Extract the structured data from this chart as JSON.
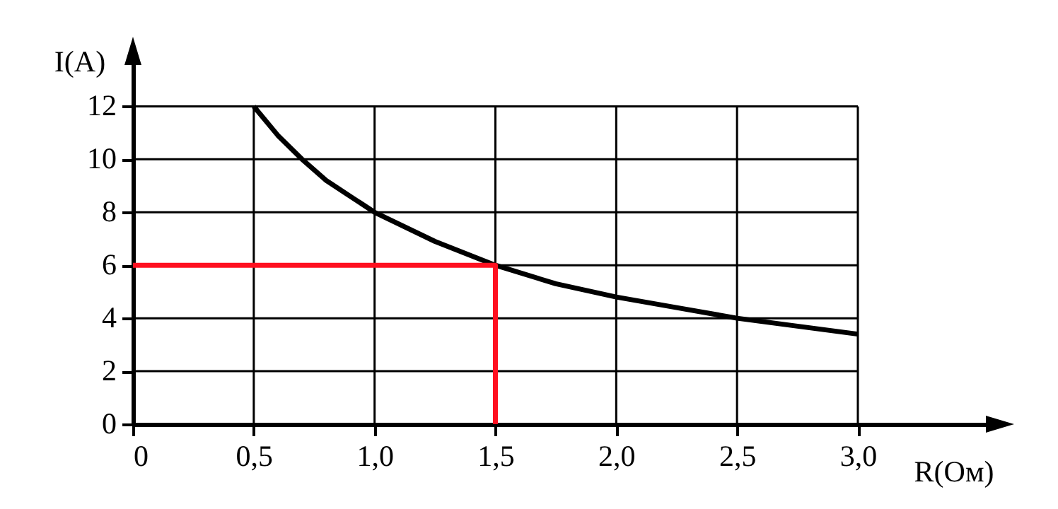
{
  "chart_data": {
    "type": "line",
    "xlabel": "R(Ом)",
    "ylabel": "I(A)",
    "xlim": [
      0,
      3.6
    ],
    "ylim": [
      0,
      14.2
    ],
    "xticks": [
      0,
      {
        "value": 0.5,
        "label": "0,5"
      },
      {
        "value": 1,
        "label": "1,0"
      },
      {
        "value": 1.5,
        "label": "1,5"
      },
      {
        "value": 2,
        "label": "2,0"
      },
      {
        "value": 2.5,
        "label": "2,5"
      },
      {
        "value": 3,
        "label": "3,0"
      }
    ],
    "yticks": [
      0,
      2,
      4,
      6,
      8,
      10,
      12
    ],
    "grid": true,
    "marker": "none",
    "line_style": "solid",
    "series": [
      {
        "color": "#000000",
        "x": [
          0.5,
          0.6,
          0.7,
          0.8,
          0.9,
          1.0,
          1.25,
          1.5,
          1.75,
          2.0,
          2.25,
          2.5,
          2.75,
          3.0
        ],
        "values": [
          12,
          10.9,
          10,
          9.2,
          8.6,
          8,
          6.9,
          6,
          5.3,
          4.8,
          4.4,
          4,
          3.7,
          3.4
        ]
      },
      {
        "color": "#ff1020",
        "x": [
          0,
          1.5,
          1.5
        ],
        "values": [
          6,
          6,
          0
        ]
      }
    ]
  }
}
